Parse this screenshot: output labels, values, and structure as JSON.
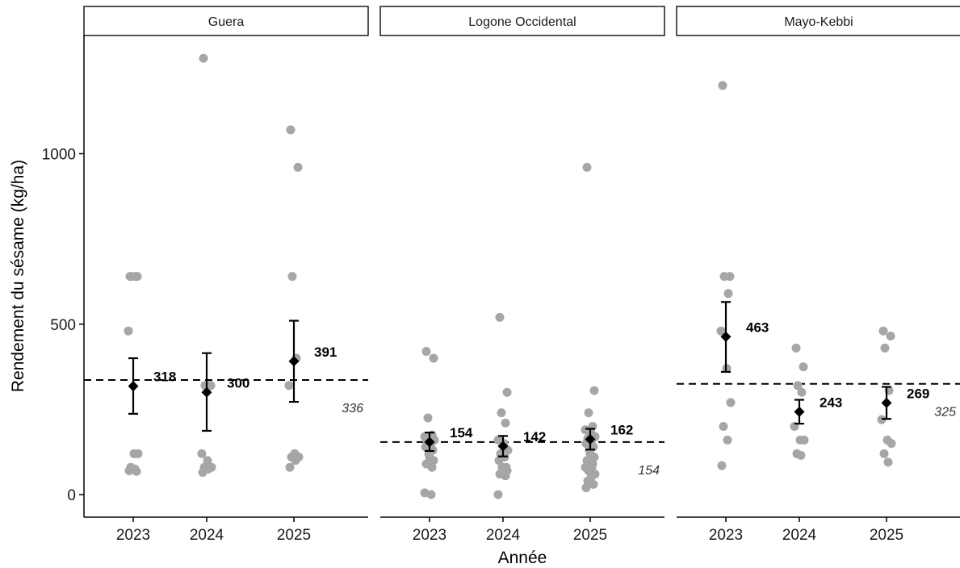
{
  "chart_data": {
    "type": "scatter",
    "xlabel": "Année",
    "ylabel": "Rendement du sésame (kg/ha)",
    "ylim": [
      -65,
      1340
    ],
    "yticks": [
      0,
      500,
      1000
    ],
    "categories": [
      "2023",
      "2024",
      "2025"
    ],
    "grid": false,
    "colors": {
      "points": "#a6a6a6",
      "summary": "#000000",
      "strip_fill": "#ffffff",
      "strip_border": "#1a1a1a"
    },
    "panels": [
      {
        "name": "Guera",
        "reference": {
          "value": 336,
          "label": "336"
        },
        "years": [
          {
            "year": "2023",
            "mean": 318,
            "lower": 237,
            "upper": 400,
            "mean_label": "318",
            "points": [
              640,
              640,
              640,
              640,
              480,
              120,
              120,
              80,
              75,
              70,
              68
            ]
          },
          {
            "year": "2024",
            "mean": 300,
            "lower": 187,
            "upper": 415,
            "mean_label": "300",
            "points": [
              1280,
              320,
              320,
              320,
              120,
              100,
              80,
              80,
              75,
              65
            ]
          },
          {
            "year": "2025",
            "mean": 391,
            "lower": 272,
            "upper": 510,
            "mean_label": "391",
            "points": [
              1070,
              960,
              640,
              400,
              320,
              120,
              110,
              110,
              100,
              80
            ]
          }
        ]
      },
      {
        "name": "Logone Occidental",
        "reference": {
          "value": 154,
          "label": "154"
        },
        "years": [
          {
            "year": "2023",
            "mean": 154,
            "lower": 128,
            "upper": 182,
            "mean_label": "154",
            "points": [
              420,
              400,
              225,
              175,
              170,
              165,
              160,
              155,
              150,
              140,
              130,
              120,
              110,
              100,
              90,
              80,
              5,
              0
            ]
          },
          {
            "year": "2024",
            "mean": 142,
            "lower": 112,
            "upper": 172,
            "mean_label": "142",
            "points": [
              520,
              300,
              240,
              210,
              160,
              150,
              130,
              120,
              110,
              100,
              80,
              80,
              75,
              70,
              60,
              55,
              0
            ]
          },
          {
            "year": "2025",
            "mean": 162,
            "lower": 132,
            "upper": 193,
            "mean_label": "162",
            "points": [
              960,
              305,
              240,
              200,
              190,
              180,
              170,
              165,
              160,
              150,
              140,
              130,
              120,
              110,
              100,
              90,
              80,
              80,
              70,
              60,
              50,
              40,
              30,
              20
            ]
          }
        ]
      },
      {
        "name": "Mayo-Kebbi",
        "reference": {
          "value": 325,
          "label": "325"
        },
        "years": [
          {
            "year": "2023",
            "mean": 463,
            "lower": 360,
            "upper": 565,
            "mean_label": "463",
            "points": [
              1200,
              640,
              640,
              590,
              480,
              370,
              270,
              200,
              160,
              85
            ]
          },
          {
            "year": "2024",
            "mean": 243,
            "lower": 208,
            "upper": 278,
            "mean_label": "243",
            "points": [
              430,
              375,
              320,
              300,
              200,
              160,
              160,
              120,
              115
            ]
          },
          {
            "year": "2025",
            "mean": 269,
            "lower": 222,
            "upper": 316,
            "mean_label": "269",
            "points": [
              480,
              465,
              430,
              305,
              220,
              160,
              150,
              120,
              95
            ]
          }
        ]
      }
    ]
  }
}
